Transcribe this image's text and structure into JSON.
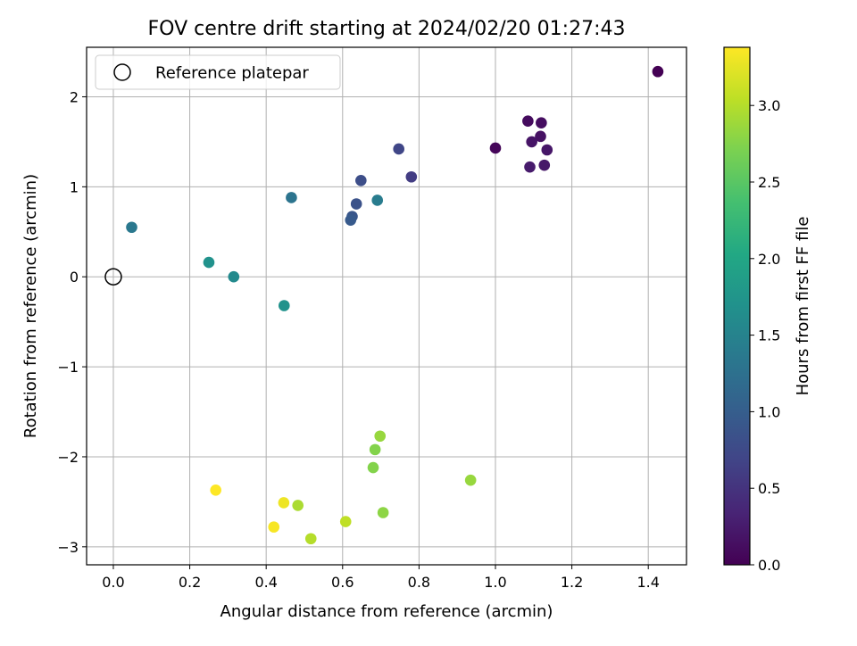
{
  "chart_data": {
    "type": "scatter",
    "title": "FOV centre drift starting at 2024/02/20 01:27:43",
    "xlabel": "Angular distance from reference (arcmin)",
    "ylabel": "Rotation from reference (arcmin)",
    "xlim": [
      -0.07,
      1.5
    ],
    "ylim": [
      -3.2,
      2.55
    ],
    "x_ticks": [
      0.0,
      0.2,
      0.4,
      0.6,
      0.8,
      1.0,
      1.2,
      1.4
    ],
    "x_tick_labels": [
      "0.0",
      "0.2",
      "0.4",
      "0.6",
      "0.8",
      "1.0",
      "1.2",
      "1.4"
    ],
    "y_ticks": [
      -3,
      -2,
      -1,
      0,
      1,
      2
    ],
    "y_tick_labels": [
      "−3",
      "−2",
      "−1",
      "0",
      "1",
      "2"
    ],
    "grid": true,
    "legend": {
      "placement": "top-left",
      "entries": [
        {
          "label": "Reference platepar",
          "marker": "open-circle"
        }
      ]
    },
    "reference_point": {
      "x": 0.0,
      "y": 0.0
    },
    "colorbar": {
      "label": "Hours from first FF file",
      "colormap": "viridis",
      "range": [
        0.0,
        3.38
      ],
      "ticks": [
        0.0,
        0.5,
        1.0,
        1.5,
        2.0,
        2.5,
        3.0
      ],
      "tick_labels": [
        "0.0",
        "0.5",
        "1.0",
        "1.5",
        "2.0",
        "2.5",
        "3.0"
      ]
    },
    "points": [
      {
        "x": 1.425,
        "y": 2.28,
        "hours": 0.0
      },
      {
        "x": 1.0,
        "y": 1.43,
        "hours": 0.05
      },
      {
        "x": 1.085,
        "y": 1.73,
        "hours": 0.1
      },
      {
        "x": 1.12,
        "y": 1.71,
        "hours": 0.12
      },
      {
        "x": 1.118,
        "y": 1.56,
        "hours": 0.15
      },
      {
        "x": 1.095,
        "y": 1.5,
        "hours": 0.18
      },
      {
        "x": 1.135,
        "y": 1.41,
        "hours": 0.2
      },
      {
        "x": 1.128,
        "y": 1.24,
        "hours": 0.22
      },
      {
        "x": 1.09,
        "y": 1.22,
        "hours": 0.25
      },
      {
        "x": 0.78,
        "y": 1.11,
        "hours": 0.6
      },
      {
        "x": 0.747,
        "y": 1.42,
        "hours": 0.7
      },
      {
        "x": 0.648,
        "y": 1.07,
        "hours": 0.8
      },
      {
        "x": 0.636,
        "y": 0.81,
        "hours": 0.85
      },
      {
        "x": 0.625,
        "y": 0.67,
        "hours": 0.9
      },
      {
        "x": 0.621,
        "y": 0.63,
        "hours": 0.95
      },
      {
        "x": 0.466,
        "y": 0.88,
        "hours": 1.3
      },
      {
        "x": 0.691,
        "y": 0.85,
        "hours": 1.4
      },
      {
        "x": 0.048,
        "y": 0.55,
        "hours": 1.35
      },
      {
        "x": 0.315,
        "y": 0.0,
        "hours": 1.6
      },
      {
        "x": 0.25,
        "y": 0.16,
        "hours": 1.7
      },
      {
        "x": 0.447,
        "y": -0.32,
        "hours": 1.7
      },
      {
        "x": 0.935,
        "y": -2.26,
        "hours": 2.85
      },
      {
        "x": 0.698,
        "y": -1.77,
        "hours": 2.85
      },
      {
        "x": 0.685,
        "y": -1.92,
        "hours": 2.75
      },
      {
        "x": 0.68,
        "y": -2.12,
        "hours": 2.75
      },
      {
        "x": 0.706,
        "y": -2.62,
        "hours": 2.8
      },
      {
        "x": 0.483,
        "y": -2.54,
        "hours": 2.95
      },
      {
        "x": 0.608,
        "y": -2.72,
        "hours": 3.05
      },
      {
        "x": 0.517,
        "y": -2.91,
        "hours": 3.0
      },
      {
        "x": 0.446,
        "y": -2.51,
        "hours": 3.3
      },
      {
        "x": 0.42,
        "y": -2.78,
        "hours": 3.35
      },
      {
        "x": 0.268,
        "y": -2.37,
        "hours": 3.38
      }
    ]
  }
}
